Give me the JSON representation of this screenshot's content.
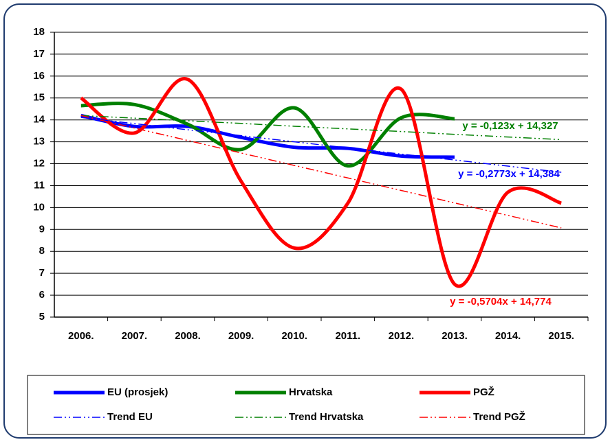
{
  "chart_data": {
    "type": "line",
    "categories": [
      "2006.",
      "2007.",
      "2008.",
      "2009.",
      "2010.",
      "2011.",
      "2012.",
      "2013.",
      "2014.",
      "2015."
    ],
    "ylim": [
      5,
      18
    ],
    "yticks": [
      5,
      6,
      7,
      8,
      9,
      10,
      11,
      12,
      13,
      14,
      15,
      16,
      17,
      18
    ],
    "grid": true,
    "legend": "bottom",
    "series": [
      {
        "name": "EU (prosjek)",
        "color": "#0000ff",
        "style": "solid",
        "values": [
          14.2,
          13.7,
          13.7,
          13.2,
          12.75,
          12.7,
          12.35,
          12.3,
          null,
          null
        ]
      },
      {
        "name": "Hrvatska",
        "color": "#008000",
        "style": "solid",
        "values": [
          14.65,
          14.7,
          13.8,
          12.65,
          14.55,
          11.9,
          14.1,
          14.05,
          null,
          null
        ]
      },
      {
        "name": "PGŽ",
        "color": "#ff0000",
        "style": "solid",
        "values": [
          15.0,
          13.4,
          15.85,
          11.2,
          8.15,
          10.2,
          15.4,
          6.5,
          10.7,
          10.2
        ]
      },
      {
        "name": "Trend EU",
        "color": "#0000ff",
        "style": "dashdot",
        "values": [
          14.11,
          13.83,
          13.55,
          13.28,
          13.0,
          12.72,
          12.44,
          12.17,
          11.89,
          11.61
        ]
      },
      {
        "name": "Trend Hrvatska",
        "color": "#008000",
        "style": "dashdot",
        "values": [
          14.2,
          14.08,
          13.96,
          13.84,
          13.71,
          13.59,
          13.47,
          13.34,
          13.22,
          13.1
        ]
      },
      {
        "name": "Trend PGŽ",
        "color": "#ff0000",
        "style": "dashdot",
        "values": [
          14.2,
          13.63,
          13.06,
          12.49,
          11.92,
          11.35,
          10.78,
          10.21,
          9.64,
          9.07
        ]
      }
    ],
    "annotations": [
      {
        "text": "y = -0,123x + 14,327",
        "color": "#008000"
      },
      {
        "text": "y = -0,2773x + 14,384",
        "color": "#0000ff"
      },
      {
        "text": "y = -0,5704x + 14,774",
        "color": "#ff0000"
      }
    ]
  }
}
